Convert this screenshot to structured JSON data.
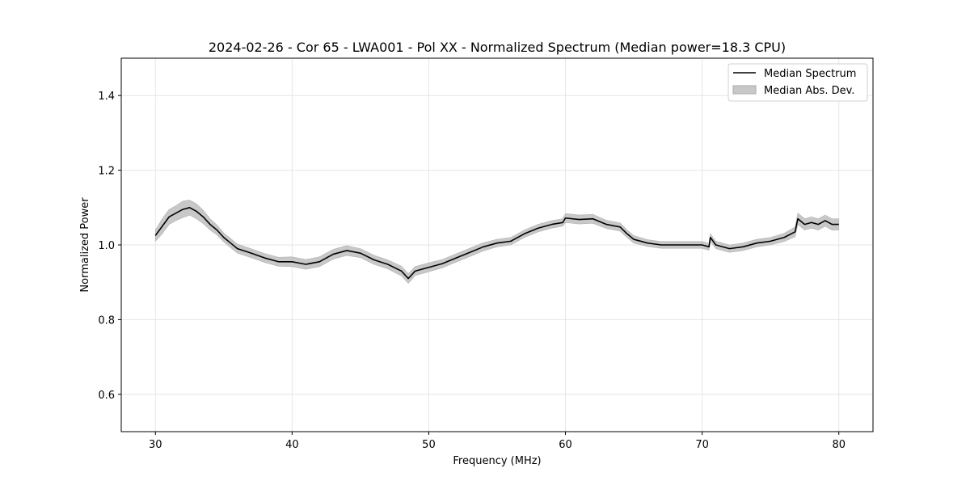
{
  "chart_data": {
    "type": "line",
    "title": "2024-02-26 - Cor 65 - LWA001 - Pol XX - Normalized Spectrum (Median power=18.3 CPU)",
    "xlabel": "Frequency (MHz)",
    "ylabel": "Normalized Power",
    "xlim": [
      27.5,
      82.5
    ],
    "ylim": [
      0.5,
      1.5
    ],
    "xticks": [
      30,
      40,
      50,
      60,
      70,
      80
    ],
    "yticks": [
      0.6,
      0.8,
      1.0,
      1.2,
      1.4
    ],
    "xtick_labels": [
      "30",
      "40",
      "50",
      "60",
      "70",
      "80"
    ],
    "ytick_labels": [
      "0.6",
      "0.8",
      "1.0",
      "1.2",
      "1.4"
    ],
    "grid": true,
    "legend_position": "top-right",
    "colors": {
      "line": "#000000",
      "band": "#c8c8c8",
      "grid": "#e6e6e6"
    },
    "series": [
      {
        "name": "Median Spectrum",
        "kind": "line",
        "x": [
          30,
          30.5,
          31,
          31.5,
          32,
          32.5,
          33,
          33.5,
          34,
          34.5,
          35,
          35.5,
          36,
          37,
          38,
          39,
          40,
          41,
          42,
          43,
          44,
          45,
          46,
          47,
          48,
          48.5,
          49,
          50,
          51,
          52,
          53,
          54,
          55,
          56,
          57,
          58,
          59,
          59.8,
          60,
          61,
          62,
          63,
          64,
          64.5,
          65,
          66,
          67,
          68,
          69,
          70,
          70.5,
          70.6,
          71,
          72,
          73,
          74,
          75,
          76,
          76.8,
          77,
          77.5,
          78,
          78.5,
          79,
          79.5,
          80
        ],
        "y": [
          1.025,
          1.05,
          1.075,
          1.085,
          1.095,
          1.1,
          1.09,
          1.075,
          1.055,
          1.04,
          1.02,
          1.005,
          0.99,
          0.978,
          0.965,
          0.955,
          0.955,
          0.948,
          0.955,
          0.975,
          0.985,
          0.978,
          0.96,
          0.948,
          0.93,
          0.91,
          0.93,
          0.94,
          0.95,
          0.965,
          0.98,
          0.995,
          1.005,
          1.01,
          1.03,
          1.045,
          1.055,
          1.06,
          1.072,
          1.068,
          1.07,
          1.055,
          1.048,
          1.03,
          1.015,
          1.005,
          1.0,
          1.0,
          1.0,
          1.0,
          0.995,
          1.02,
          1.0,
          0.99,
          0.995,
          1.005,
          1.01,
          1.02,
          1.035,
          1.07,
          1.055,
          1.06,
          1.055,
          1.065,
          1.055,
          1.055
        ]
      },
      {
        "name": "Median Abs. Dev.",
        "kind": "band",
        "x": [
          30,
          30.5,
          31,
          31.5,
          32,
          32.5,
          33,
          33.5,
          34,
          34.5,
          35,
          35.5,
          36,
          37,
          38,
          39,
          40,
          41,
          42,
          43,
          44,
          45,
          46,
          47,
          48,
          48.5,
          49,
          50,
          51,
          52,
          53,
          54,
          55,
          56,
          57,
          58,
          59,
          59.8,
          60,
          61,
          62,
          63,
          64,
          64.5,
          65,
          66,
          67,
          68,
          69,
          70,
          70.5,
          70.6,
          71,
          72,
          73,
          74,
          75,
          76,
          76.8,
          77,
          77.5,
          78,
          78.5,
          79,
          79.5,
          80
        ],
        "lower": [
          1.01,
          1.03,
          1.055,
          1.065,
          1.073,
          1.08,
          1.07,
          1.057,
          1.04,
          1.027,
          1.008,
          0.993,
          0.978,
          0.966,
          0.953,
          0.943,
          0.942,
          0.935,
          0.942,
          0.962,
          0.972,
          0.966,
          0.948,
          0.936,
          0.917,
          0.897,
          0.918,
          0.928,
          0.939,
          0.954,
          0.969,
          0.984,
          0.995,
          1.0,
          1.02,
          1.035,
          1.045,
          1.05,
          1.06,
          1.056,
          1.058,
          1.044,
          1.037,
          1.02,
          1.005,
          0.996,
          0.991,
          0.991,
          0.991,
          0.991,
          0.986,
          1.01,
          0.99,
          0.98,
          0.985,
          0.995,
          1.0,
          1.009,
          1.022,
          1.055,
          1.04,
          1.045,
          1.04,
          1.05,
          1.04,
          1.04
        ],
        "upper": [
          1.04,
          1.07,
          1.095,
          1.105,
          1.117,
          1.12,
          1.11,
          1.093,
          1.07,
          1.053,
          1.032,
          1.017,
          1.002,
          0.99,
          0.977,
          0.967,
          0.968,
          0.961,
          0.968,
          0.988,
          0.998,
          0.99,
          0.972,
          0.96,
          0.943,
          0.923,
          0.942,
          0.952,
          0.961,
          0.976,
          0.991,
          1.006,
          1.015,
          1.02,
          1.04,
          1.055,
          1.065,
          1.07,
          1.084,
          1.08,
          1.082,
          1.066,
          1.059,
          1.04,
          1.025,
          1.014,
          1.009,
          1.009,
          1.009,
          1.009,
          1.004,
          1.03,
          1.01,
          1.0,
          1.005,
          1.015,
          1.02,
          1.031,
          1.048,
          1.085,
          1.07,
          1.075,
          1.07,
          1.08,
          1.07,
          1.07
        ]
      }
    ]
  }
}
